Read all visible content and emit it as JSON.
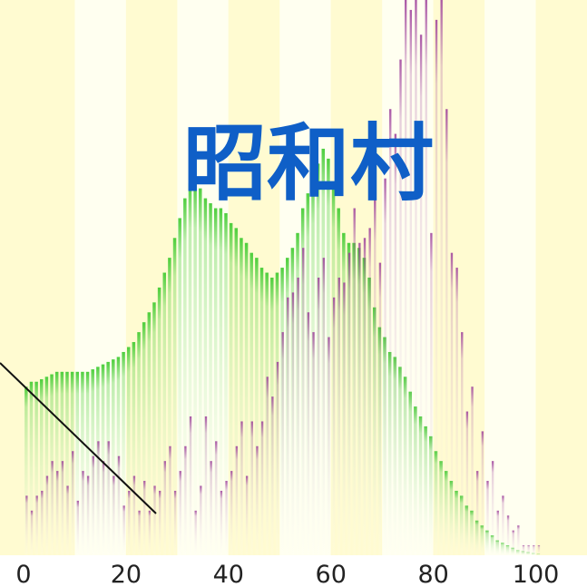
{
  "chart_data": {
    "type": "bar",
    "title": "昭和村",
    "x_ticks": [
      "0",
      "20",
      "40",
      "60",
      "80",
      "100"
    ],
    "xlim": [
      0,
      110
    ],
    "ylim": [
      0,
      112
    ],
    "band_colors": [
      "#fffbd1",
      "#fffff0"
    ],
    "background": "#fffbd1",
    "title_color": "#0f5fc7",
    "series": [
      {
        "colors": {
          "top": "#45cc35",
          "bottom": "#ffffff"
        },
        "values": [
          34,
          35,
          35,
          35.5,
          36,
          36.5,
          37,
          37,
          37,
          37,
          37,
          37,
          37,
          37.5,
          38,
          38.5,
          39,
          39.5,
          40,
          41,
          42,
          43,
          45,
          47,
          49,
          51,
          54,
          57,
          60,
          64,
          68,
          72,
          75,
          75,
          74,
          72,
          71,
          70,
          70,
          69,
          67,
          66,
          64,
          63,
          61,
          60,
          58,
          57,
          56,
          57,
          58,
          60,
          62,
          65,
          70,
          73,
          76,
          79,
          82,
          80,
          75,
          70,
          65,
          63,
          63,
          62,
          60,
          56,
          50,
          46,
          44,
          41,
          40,
          38,
          36,
          33,
          30,
          28,
          26,
          24,
          21,
          19,
          17,
          15,
          13,
          12,
          10,
          9,
          7,
          6,
          5,
          4,
          3,
          2.5,
          2,
          1.5,
          1,
          0.8,
          0.6,
          0.4,
          0.3
        ]
      },
      {
        "colors": {
          "top": "#9c3c9a",
          "bottom": "#ffffff"
        },
        "values": [
          12,
          9,
          12,
          13,
          16,
          19,
          17,
          19,
          14,
          21,
          11,
          17,
          16,
          20,
          23,
          19,
          23,
          16,
          20,
          10,
          13,
          16,
          9,
          15,
          9,
          14,
          13,
          19,
          22,
          13,
          17,
          22,
          28,
          9,
          14,
          28,
          19,
          23,
          13,
          15,
          17,
          22,
          27,
          16,
          27,
          22,
          27,
          36,
          32,
          39,
          45,
          52,
          53,
          56,
          62,
          49,
          45,
          56,
          60,
          44,
          52,
          56,
          55,
          61,
          70,
          63,
          64,
          66,
          72,
          59,
          76,
          90,
          85,
          100,
          112,
          110,
          112,
          105,
          112,
          65,
          108,
          112,
          90,
          61,
          58,
          45,
          29,
          34,
          17,
          25,
          15,
          19,
          9,
          12,
          8,
          5,
          6,
          2,
          2,
          2,
          2
        ]
      }
    ]
  }
}
